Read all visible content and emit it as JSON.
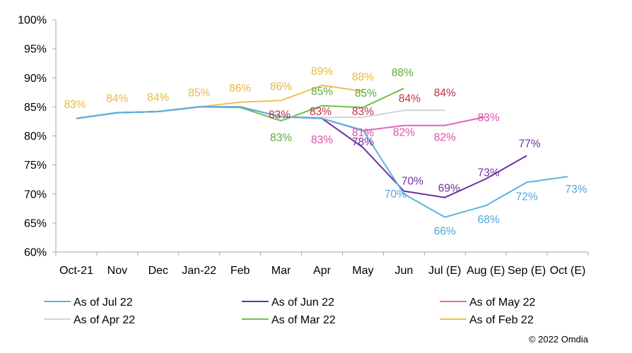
{
  "chart_data": {
    "type": "line",
    "categories": [
      "Oct-21",
      "Nov",
      "Dec",
      "Jan-22",
      "Feb",
      "Mar",
      "Apr",
      "May",
      "Jun",
      "Jul (E)",
      "Aug (E)",
      "Sep (E)",
      "Oct (E)"
    ],
    "y_ticks": [
      "60%",
      "65%",
      "70%",
      "75%",
      "80%",
      "85%",
      "90%",
      "95%",
      "100%"
    ],
    "ylim": [
      60,
      100
    ],
    "grid": false,
    "legend_position": "bottom",
    "series": [
      {
        "name": "As of Jul 22",
        "color": "#5ab4e0",
        "values": [
          83,
          84,
          84.2,
          85,
          85,
          83.3,
          83,
          81,
          70,
          66,
          68,
          72,
          73
        ],
        "labels": {
          "8": "70%",
          "9": "66%",
          "10": "68%",
          "11": "72%",
          "12": "73%"
        }
      },
      {
        "name": "As of Jun 22",
        "color": "#7030a0",
        "values": [
          83,
          84,
          84.2,
          85,
          85,
          83.3,
          83,
          78,
          70.5,
          69.4,
          72.6,
          76.6,
          null
        ],
        "labels": {
          "7": "78%",
          "8": "70%",
          "9": "69%",
          "10": "73%",
          "11": "77%"
        }
      },
      {
        "name": "As of May 22",
        "color": "#e066b7",
        "values": [
          83,
          84,
          84.2,
          85,
          85,
          83.3,
          83,
          80.9,
          81.8,
          81.8,
          83.3,
          null,
          null
        ],
        "labels": {
          "6": "83%",
          "7": "81%",
          "8": "82%",
          "9": "82%",
          "10": "83%"
        }
      },
      {
        "name": "As of Apr 22",
        "color": "#d3d3d3",
        "values": [
          83,
          84,
          84.2,
          85,
          85,
          83.3,
          83.2,
          83.2,
          84.4,
          84.4,
          null,
          null,
          null
        ],
        "labels": {
          "5": "83%",
          "6": "83%",
          "7": "83%",
          "8": "84%",
          "9": "84%"
        }
      },
      {
        "name": "As of Mar 22",
        "color": "#6fbf4a",
        "values": [
          83,
          84,
          84.2,
          85,
          84.9,
          82.6,
          85.2,
          84.9,
          88.2,
          null,
          null,
          null,
          null
        ],
        "labels": {
          "5": "83%",
          "6": "85%",
          "7": "85%",
          "8": "88%"
        }
      },
      {
        "name": "As of Feb 22",
        "color": "#f0c050",
        "values": [
          83,
          84,
          84.2,
          85,
          85.8,
          86.1,
          88.7,
          87.7,
          null,
          null,
          null,
          null,
          null
        ],
        "labels": {
          "0": "83%",
          "1": "84%",
          "2": "84%",
          "3": "85%",
          "4": "86%",
          "5": "86%",
          "6": "89%",
          "7": "88%"
        }
      }
    ],
    "label_colors": {
      "As of Jul 22": "#4aa8d8",
      "As of Jun 22": "#7030a0",
      "As of May 22": "#d94fa8",
      "As of Apr 22": "#c0304a",
      "As of Mar 22": "#5aaa3a",
      "As of Feb 22": "#e8b840"
    }
  },
  "copyright": "© 2022 Omdia"
}
